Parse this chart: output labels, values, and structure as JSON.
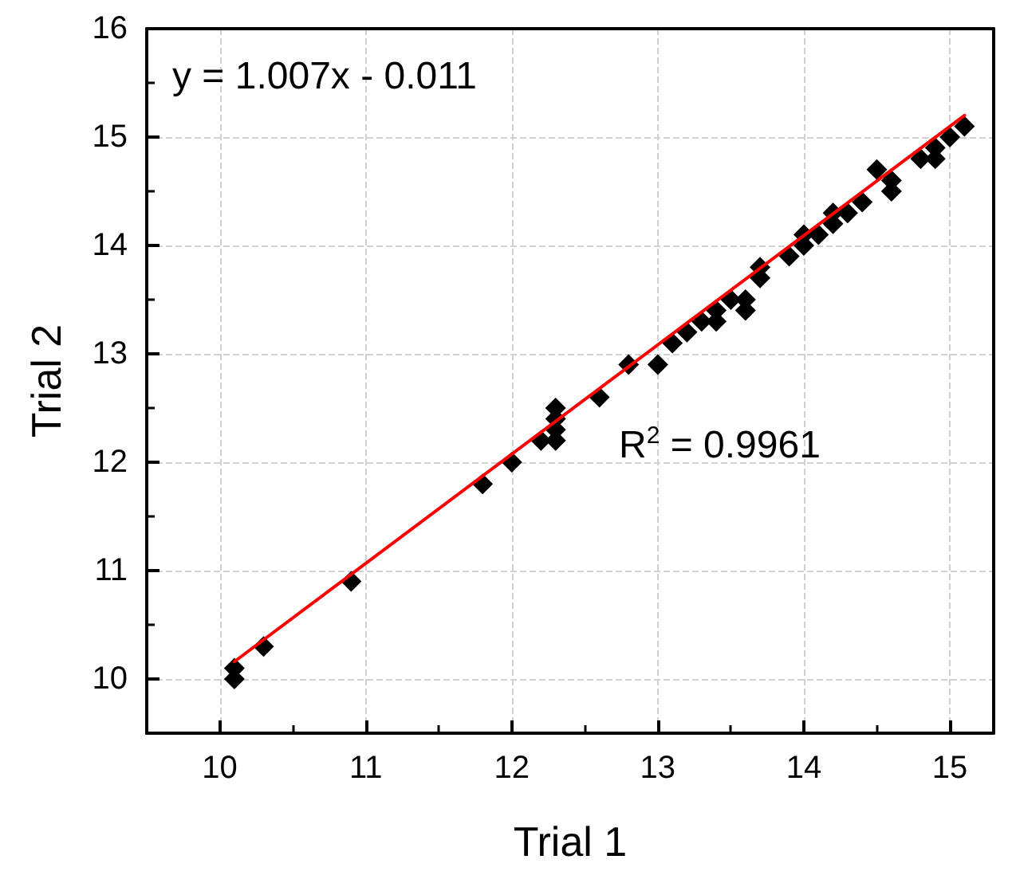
{
  "chart_data": {
    "type": "scatter",
    "xlabel": "Trial 1",
    "ylabel": "Trial 2",
    "annotations": [
      "y = 1.007x - 0.011",
      "R$^{2}$ = 0.9961"
    ],
    "xlim": [
      9.5,
      15.3
    ],
    "ylim": [
      9.5,
      16
    ],
    "xticks": [
      {
        "value": 9.5,
        "label": null
      },
      10,
      {
        "value": 10.5,
        "label": null
      },
      11,
      {
        "value": 11.5,
        "label": null
      },
      12,
      {
        "value": 12.5,
        "label": null
      },
      13,
      {
        "value": 13.5,
        "label": null
      },
      14,
      {
        "value": 14.5,
        "label": null
      },
      15
    ],
    "yticks": [
      {
        "value": 9.5,
        "label": null
      },
      10,
      {
        "value": 10.5,
        "label": null
      },
      11,
      {
        "value": 11.5,
        "label": null
      },
      12,
      {
        "value": 12.5,
        "label": null
      },
      13,
      {
        "value": 13.5,
        "label": null
      },
      14,
      {
        "value": 14.5,
        "label": null
      },
      15,
      {
        "value": 15.5,
        "label": null
      },
      16
    ],
    "grid": true,
    "marker": "diamond",
    "series": [
      {
        "color": "#000000",
        "x": [
          10.1,
          10.1,
          10.3,
          10.9,
          11.8,
          12.0,
          12.2,
          12.3,
          12.3,
          12.3,
          12.3,
          12.6,
          12.8,
          13.0,
          13.1,
          13.2,
          13.3,
          13.4,
          13.4,
          13.5,
          13.6,
          13.6,
          13.7,
          13.7,
          13.9,
          14.0,
          14.0,
          14.1,
          14.2,
          14.2,
          14.3,
          14.4,
          14.5,
          14.6,
          14.6,
          14.8,
          14.9,
          14.9,
          15.0,
          15.1
        ],
        "values": [
          10.0,
          10.1,
          10.3,
          10.9,
          11.8,
          12.0,
          12.2,
          12.2,
          12.3,
          12.4,
          12.5,
          12.6,
          12.9,
          12.9,
          13.1,
          13.2,
          13.3,
          13.3,
          13.4,
          13.5,
          13.4,
          13.5,
          13.7,
          13.8,
          13.9,
          14.0,
          14.1,
          14.1,
          14.2,
          14.3,
          14.3,
          14.4,
          14.7,
          14.5,
          14.6,
          14.8,
          14.8,
          14.9,
          15.0,
          15.1
        ]
      },
      {
        "type": "line",
        "color": "#ff0000",
        "marker": "none",
        "line_style": "solid",
        "x": [
          10.1,
          15.1
        ],
        "values": [
          10.16,
          15.2
        ]
      }
    ]
  }
}
